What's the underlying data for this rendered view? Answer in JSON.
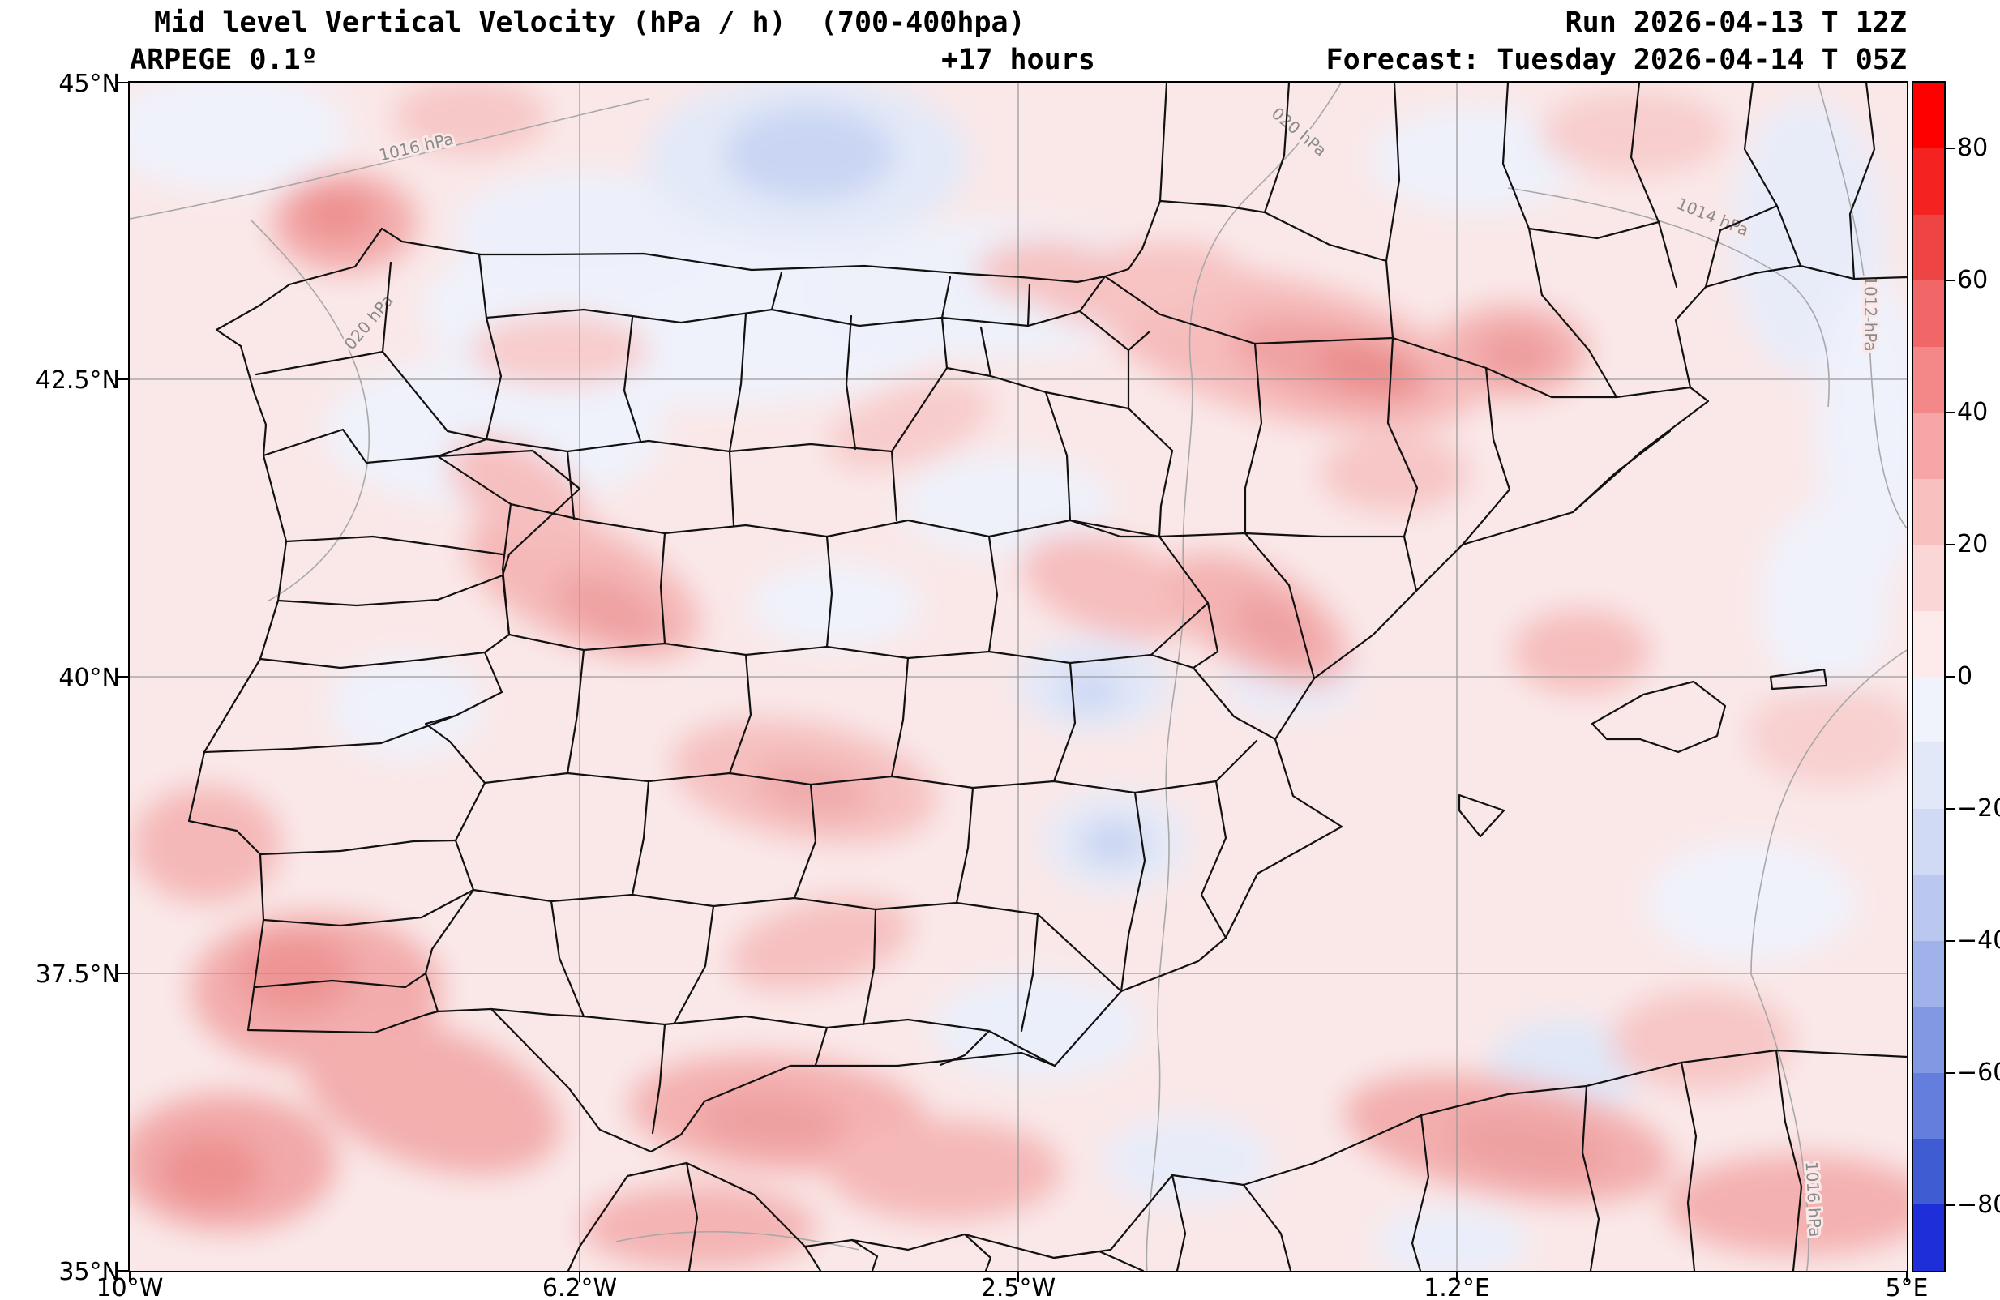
{
  "header": {
    "title": "Mid level Vertical Velocity (hPa / h)  (700-400hpa)",
    "model": "ARPEGE 0.1º",
    "lead_time": "+17 hours",
    "run": "Run 2026-04-13 T 12Z",
    "forecast": "Forecast: Tuesday 2026-04-14 T 05Z"
  },
  "axes": {
    "lat_ticks": [
      "45°N",
      "42.5°N",
      "40°N",
      "37.5°N",
      "35°N"
    ],
    "lon_ticks": [
      "10°W",
      "6.2°W",
      "2.5°W",
      "1.2°E",
      "5°E"
    ]
  },
  "colorbar": {
    "range": [
      -90,
      90
    ],
    "ticks": [
      {
        "label": "80",
        "value": 80
      },
      {
        "label": "60",
        "value": 60
      },
      {
        "label": "40",
        "value": 40
      },
      {
        "label": "20",
        "value": 20
      },
      {
        "label": "0",
        "value": 0
      },
      {
        "label": "−20",
        "value": -20
      },
      {
        "label": "−40",
        "value": -40
      },
      {
        "label": "−60",
        "value": -60
      },
      {
        "label": "−80",
        "value": -80
      }
    ],
    "colors_top_to_bottom": [
      "#fe0000",
      "#f52222",
      "#ef4444",
      "#f16666",
      "#f48888",
      "#f6a6a6",
      "#f9c0c0",
      "#fbd6d6",
      "#fdebeb",
      "#f0f3fc",
      "#e2e8f8",
      "#d0daf5",
      "#bac8f0",
      "#a0b2ea",
      "#8298e3",
      "#637edc",
      "#3f5cd3",
      "#1e2ed8"
    ]
  },
  "isobar_labels": [
    {
      "text": "1016 hPa"
    },
    {
      "text": "020 hPa"
    },
    {
      "text": "020 hPa"
    },
    {
      "text": "1014 hPa"
    },
    {
      "text": "1012 hPa"
    },
    {
      "text": "1016 hPa"
    }
  ],
  "chart_data": {
    "type": "heatmap",
    "title": "Mid level Vertical Velocity (hPa / h) (700-400hpa)",
    "model": "ARPEGE 0.1º",
    "run": "2026-04-13 12Z",
    "forecast_valid": "Tuesday 2026-04-14 05Z",
    "lead_hours": 17,
    "units": "hPa / h",
    "extent": {
      "lon_min": -10,
      "lon_max": 5,
      "lat_min": 35,
      "lat_max": 45
    },
    "colorbar_range": [
      -90,
      90
    ],
    "colorbar_tick_values": [
      80,
      60,
      40,
      20,
      0,
      -20,
      -40,
      -60,
      -80
    ],
    "grid_lines": {
      "lat": [
        42.5,
        40,
        37.5
      ],
      "lon": [
        -6.2,
        -2.5,
        1.2
      ]
    },
    "field_features": [
      {
        "region": "most of domain (background)",
        "value_hPa_h": "0 to +10"
      },
      {
        "region": "NW Galicia coast",
        "value_hPa_h": "+20 to +30"
      },
      {
        "region": "Ebro valley / NE Spain band",
        "value_hPa_h": "+20 to +35"
      },
      {
        "region": "Catalonia coast spot",
        "value_hPa_h": "+15 to +25"
      },
      {
        "region": "west-central Iberia (Extremadura band)",
        "value_hPa_h": "+15 to +25"
      },
      {
        "region": "south-central Spain band",
        "value_hPa_h": "+10 to +20"
      },
      {
        "region": "SW corner / Gulf of Cádiz blobs",
        "value_hPa_h": "+20 to +30"
      },
      {
        "region": "Alborán Sea / N Africa coastal band",
        "value_hPa_h": "+15 to +25"
      },
      {
        "region": "Bay of Biscay blue blob (top centre)",
        "value_hPa_h": "-10 to -20"
      },
      {
        "region": "north Spain broad area",
        "value_hPa_h": "0 to -10"
      },
      {
        "region": "small spots central/SE Spain",
        "value_hPa_h": "-10 to -20"
      },
      {
        "region": "bottom-right lavender patch",
        "value_hPa_h": "-5 to -15"
      }
    ],
    "isobars_labeled": [
      "1016 hPa (top left)",
      "1020 hPa (Galicia)",
      "1020 hPa (top centre-right)",
      "1014 hPa (NE, Gulf of Lion)",
      "1012 hPa (right edge)",
      "1016 hPa (bottom right)"
    ]
  }
}
